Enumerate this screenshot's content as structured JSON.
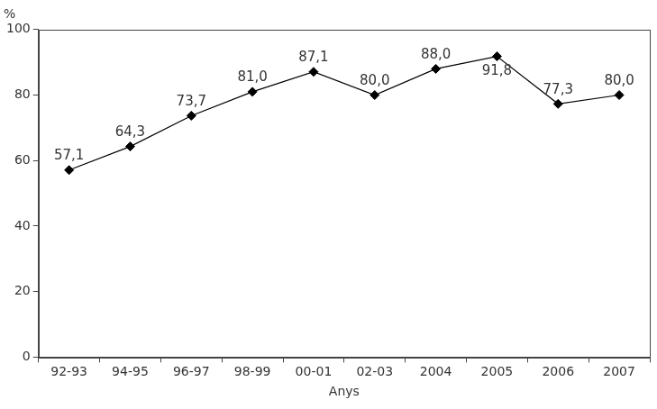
{
  "chart_data": {
    "type": "line",
    "title": "%",
    "x_label": "Anys",
    "categories": [
      "92-93",
      "94-95",
      "96-97",
      "98-99",
      "00-01",
      "02-03",
      "2004",
      "2005",
      "2006",
      "2007"
    ],
    "values": [
      57.1,
      64.3,
      73.7,
      81.0,
      87.1,
      80.0,
      88.0,
      91.8,
      77.3,
      80.0
    ],
    "value_labels": [
      "57,1",
      "64,3",
      "73,7",
      "81,0",
      "87,1",
      "80,0",
      "88,0",
      "91,8",
      "77,3",
      "80,0"
    ],
    "color": "#000000",
    "marker": "diamond",
    "line_style": "solid",
    "ylim": [
      0,
      100
    ],
    "yticks": [
      0,
      20,
      40,
      60,
      80,
      100
    ],
    "grid": false,
    "data_labels": true
  }
}
